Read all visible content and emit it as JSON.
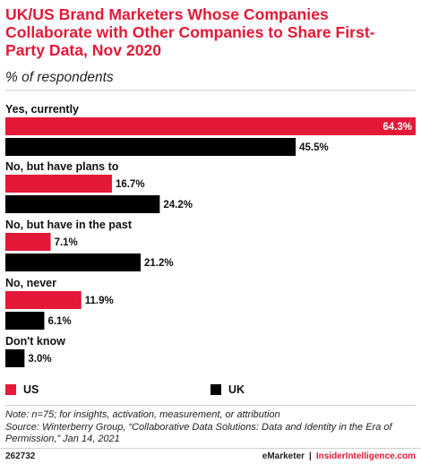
{
  "title": "UK/US Brand Marketers Whose Companies Collaborate with Other Companies to Share First-Party Data, Nov 2020",
  "subtitle": "% of respondents",
  "chart_data": {
    "type": "bar",
    "orientation": "horizontal",
    "categories": [
      "Yes, currently",
      "No, but have plans to",
      "No, but have in the past",
      "No, never",
      "Don't know"
    ],
    "series": [
      {
        "name": "US",
        "values": [
          64.3,
          16.7,
          7.1,
          11.9,
          null
        ],
        "labels": [
          "64.3%",
          "16.7%",
          "7.1%",
          "11.9%",
          null
        ],
        "color": "#e31937"
      },
      {
        "name": "UK",
        "values": [
          45.5,
          24.2,
          21.2,
          6.1,
          3.0
        ],
        "labels": [
          "45.5%",
          "24.2%",
          "21.2%",
          "6.1%",
          "3.0%"
        ],
        "color": "#000000"
      }
    ],
    "xlim": [
      0,
      64.3
    ],
    "grid": false,
    "legend": "bottom"
  },
  "legend": {
    "us_label": "US",
    "uk_label": "UK",
    "us_color": "#e31937",
    "uk_color": "#000000"
  },
  "footer": {
    "note": "Note: n=75; for insights, activation, measurement, or attribution",
    "source": "Source: Winterberry Group, “Collaborative Data Solutions: Data and Identity in the Era of Permission,” Jan 14, 2021",
    "chart_id": "262732",
    "brand_left": "eMarketer",
    "separator": "|",
    "brand_right": "InsiderIntelligence.com"
  }
}
